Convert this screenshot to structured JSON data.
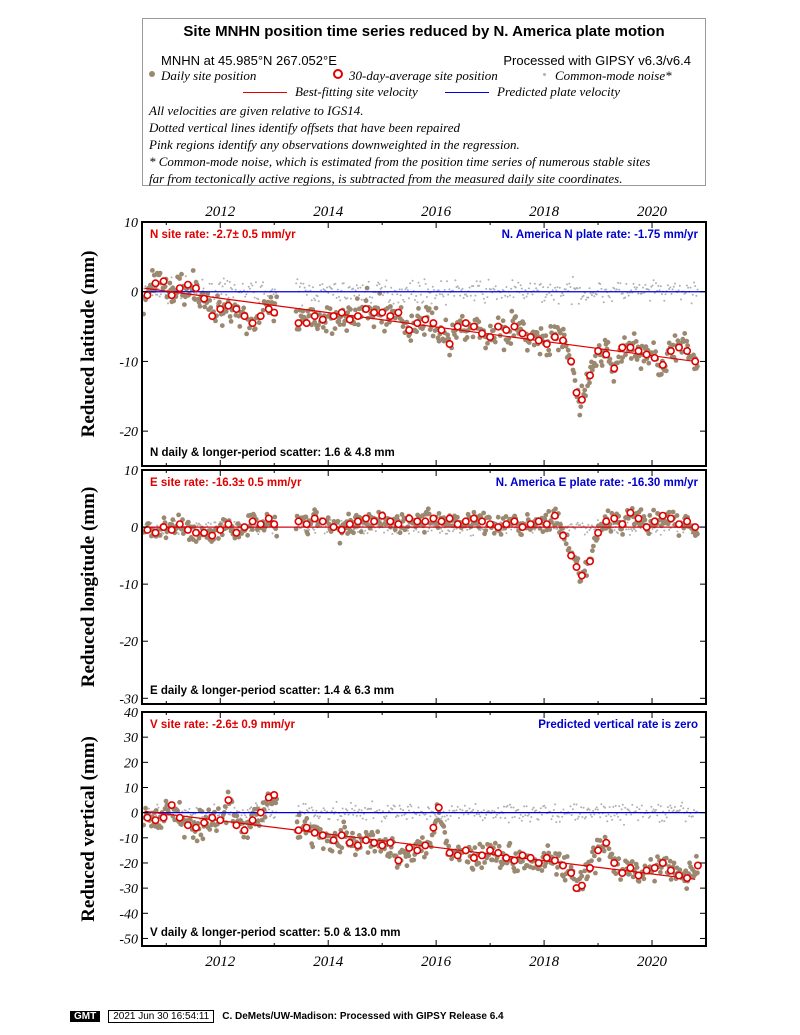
{
  "header": {
    "title": "Site MNHN position time series reduced by N. America plate motion",
    "site_location": "MNHN at 45.985°N 267.052°E",
    "processing": "Processed with GIPSY v6.3/v6.4",
    "legend": {
      "daily": "Daily site position",
      "avg30": "30-day-average site position",
      "common_mode": "Common-mode noise*",
      "best_fit": "Best-fitting site velocity",
      "predicted": "Predicted plate velocity"
    },
    "notes": [
      "All velocities are given relative to IGS14.",
      "Dotted vertical lines identify offsets that have been repaired",
      "Pink regions identify any observations downweighted in the regression.",
      "* Common-mode noise, which is estimated from the position time series of numerous stable sites",
      "far from tectonically active regions, is subtracted from the measured daily site coordinates."
    ]
  },
  "footer": {
    "logo": "GMT",
    "timestamp": "2021 Jun 30 16:54:11",
    "credit": "C. DeMets/UW-Madison: Processed with GIPSY Release 6.4"
  },
  "colors": {
    "daily": "#9b8870",
    "common_mode": "#b0b0b0",
    "avg_stroke": "#e00000",
    "best_fit": "#e00000",
    "predicted": "#0000dd",
    "rate_text": "#e00000",
    "plate_text": "#0000cc"
  },
  "chart_data": [
    {
      "type": "scatter",
      "component": "N",
      "ylabel": "Reduced latitude (mm)",
      "site_rate": "N site rate:  -2.7± 0.5 mm/yr",
      "plate_rate": "N. America N plate rate: -1.75 mm/yr",
      "scatter": "N daily & longer-period scatter:   1.6 &   4.8 mm",
      "xlim": [
        2010.55,
        2021.0
      ],
      "ylim": [
        -25,
        10
      ],
      "yticks": [
        10,
        0,
        -10,
        -20
      ],
      "xticks": [
        "2012",
        "2014",
        "2016",
        "2018",
        "2020"
      ],
      "best_fit": {
        "x": [
          2010.6,
          2020.8
        ],
        "y": [
          0.5,
          -10.0
        ]
      },
      "predicted": {
        "x": [
          2010.55,
          2021.0
        ],
        "y": [
          0,
          0
        ]
      },
      "avg": [
        [
          2010.65,
          -0.5
        ],
        [
          2010.8,
          1.2
        ],
        [
          2010.95,
          1.5
        ],
        [
          2011.1,
          -0.5
        ],
        [
          2011.25,
          0.5
        ],
        [
          2011.4,
          1.0
        ],
        [
          2011.55,
          0.5
        ],
        [
          2011.7,
          -1.0
        ],
        [
          2011.85,
          -3.5
        ],
        [
          2012.0,
          -2.5
        ],
        [
          2012.15,
          -2.0
        ],
        [
          2012.3,
          -2.5
        ],
        [
          2012.45,
          -3.5
        ],
        [
          2012.6,
          -4.5
        ],
        [
          2012.75,
          -3.5
        ],
        [
          2012.9,
          -2.5
        ],
        [
          2013.0,
          -3.0
        ],
        [
          2013.45,
          -4.5
        ],
        [
          2013.6,
          -4.5
        ],
        [
          2013.75,
          -3.5
        ],
        [
          2013.9,
          -4.0
        ],
        [
          2014.1,
          -3.5
        ],
        [
          2014.25,
          -3.0
        ],
        [
          2014.4,
          -4.0
        ],
        [
          2014.55,
          -3.5
        ],
        [
          2014.7,
          -2.5
        ],
        [
          2014.85,
          -3.0
        ],
        [
          2015.0,
          -3.0
        ],
        [
          2015.15,
          -3.5
        ],
        [
          2015.3,
          -3.0
        ],
        [
          2015.5,
          -5.5
        ],
        [
          2015.65,
          -4.5
        ],
        [
          2015.8,
          -4.0
        ],
        [
          2015.95,
          -4.5
        ],
        [
          2016.1,
          -5.5
        ],
        [
          2016.25,
          -7.5
        ],
        [
          2016.4,
          -5.0
        ],
        [
          2016.55,
          -4.5
        ],
        [
          2016.7,
          -5.0
        ],
        [
          2016.85,
          -6.0
        ],
        [
          2017.0,
          -6.5
        ],
        [
          2017.15,
          -5.0
        ],
        [
          2017.3,
          -5.5
        ],
        [
          2017.45,
          -5.0
        ],
        [
          2017.6,
          -6.0
        ],
        [
          2017.75,
          -6.5
        ],
        [
          2017.9,
          -7.0
        ],
        [
          2018.05,
          -7.5
        ],
        [
          2018.2,
          -6.5
        ],
        [
          2018.35,
          -7.0
        ],
        [
          2018.5,
          -10.0
        ],
        [
          2018.6,
          -14.5
        ],
        [
          2018.7,
          -15.5
        ],
        [
          2018.85,
          -12.0
        ],
        [
          2019.0,
          -8.5
        ],
        [
          2019.15,
          -9.0
        ],
        [
          2019.3,
          -11.0
        ],
        [
          2019.45,
          -8.0
        ],
        [
          2019.6,
          -8.0
        ],
        [
          2019.75,
          -8.5
        ],
        [
          2019.9,
          -9.0
        ],
        [
          2020.05,
          -9.5
        ],
        [
          2020.2,
          -10.5
        ],
        [
          2020.35,
          -8.5
        ],
        [
          2020.5,
          -8.0
        ],
        [
          2020.65,
          -8.5
        ],
        [
          2020.8,
          -10.0
        ]
      ]
    },
    {
      "type": "scatter",
      "component": "E",
      "ylabel": "Reduced longitude (mm)",
      "site_rate": "E site rate:  -16.3± 0.5 mm/yr",
      "plate_rate": "N. America E plate rate: -16.30 mm/yr",
      "scatter": "E daily & longer-period scatter:   1.4 &   6.3 mm",
      "xlim": [
        2010.55,
        2021.0
      ],
      "ylim": [
        -31,
        10
      ],
      "yticks": [
        10,
        0,
        -10,
        -20,
        -30
      ],
      "xticks": [
        "2012",
        "2014",
        "2016",
        "2018",
        "2020"
      ],
      "best_fit": {
        "x": [
          2010.6,
          2020.8
        ],
        "y": [
          0,
          0
        ]
      },
      "predicted": {
        "x": [
          2010.55,
          2021.0
        ],
        "y": [
          0,
          0
        ]
      },
      "avg": [
        [
          2010.65,
          -0.5
        ],
        [
          2010.8,
          -1.0
        ],
        [
          2010.95,
          0.0
        ],
        [
          2011.1,
          -0.5
        ],
        [
          2011.25,
          0.5
        ],
        [
          2011.4,
          -0.5
        ],
        [
          2011.55,
          -1.0
        ],
        [
          2011.7,
          -1.0
        ],
        [
          2011.85,
          -1.5
        ],
        [
          2012.0,
          -0.5
        ],
        [
          2012.15,
          0.5
        ],
        [
          2012.3,
          -1.0
        ],
        [
          2012.45,
          0.0
        ],
        [
          2012.6,
          1.0
        ],
        [
          2012.75,
          0.5
        ],
        [
          2012.9,
          1.5
        ],
        [
          2013.0,
          0.5
        ],
        [
          2013.45,
          1.0
        ],
        [
          2013.6,
          0.5
        ],
        [
          2013.75,
          1.5
        ],
        [
          2013.9,
          1.0
        ],
        [
          2014.1,
          0.0
        ],
        [
          2014.25,
          -0.5
        ],
        [
          2014.4,
          0.5
        ],
        [
          2014.55,
          1.0
        ],
        [
          2014.7,
          1.5
        ],
        [
          2014.85,
          1.0
        ],
        [
          2015.0,
          2.0
        ],
        [
          2015.15,
          1.0
        ],
        [
          2015.3,
          0.5
        ],
        [
          2015.5,
          1.5
        ],
        [
          2015.65,
          1.0
        ],
        [
          2015.8,
          1.0
        ],
        [
          2015.95,
          1.5
        ],
        [
          2016.1,
          1.0
        ],
        [
          2016.25,
          1.5
        ],
        [
          2016.4,
          0.5
        ],
        [
          2016.55,
          1.0
        ],
        [
          2016.7,
          1.5
        ],
        [
          2016.85,
          1.0
        ],
        [
          2017.0,
          0.5
        ],
        [
          2017.15,
          0.0
        ],
        [
          2017.3,
          0.5
        ],
        [
          2017.45,
          1.0
        ],
        [
          2017.6,
          0.0
        ],
        [
          2017.75,
          0.5
        ],
        [
          2017.9,
          1.0
        ],
        [
          2018.05,
          0.5
        ],
        [
          2018.2,
          2.0
        ],
        [
          2018.35,
          -1.5
        ],
        [
          2018.5,
          -5.0
        ],
        [
          2018.6,
          -7.0
        ],
        [
          2018.7,
          -8.5
        ],
        [
          2018.85,
          -6.0
        ],
        [
          2019.0,
          -1.0
        ],
        [
          2019.15,
          1.0
        ],
        [
          2019.3,
          1.5
        ],
        [
          2019.45,
          0.5
        ],
        [
          2019.6,
          2.5
        ],
        [
          2019.75,
          1.5
        ],
        [
          2019.9,
          0.0
        ],
        [
          2020.05,
          1.0
        ],
        [
          2020.2,
          2.0
        ],
        [
          2020.35,
          1.5
        ],
        [
          2020.5,
          0.5
        ],
        [
          2020.65,
          1.0
        ],
        [
          2020.8,
          0.0
        ]
      ]
    },
    {
      "type": "scatter",
      "component": "V",
      "ylabel": "Reduced vertical (mm)",
      "site_rate": "V site rate:  -2.6± 0.9 mm/yr",
      "plate_rate": "Predicted vertical rate is zero",
      "scatter": "V daily & longer-period scatter:   5.0 &  13.0 mm",
      "xlim": [
        2010.55,
        2021.0
      ],
      "ylim": [
        -53,
        40
      ],
      "yticks": [
        40,
        30,
        20,
        10,
        0,
        -10,
        -20,
        -30,
        -40,
        -50
      ],
      "xticks": [
        "2012",
        "2014",
        "2016",
        "2018",
        "2020"
      ],
      "best_fit": {
        "x": [
          2010.6,
          2020.8
        ],
        "y": [
          0.5,
          -26.5
        ]
      },
      "predicted": {
        "x": [
          2010.55,
          2021.0
        ],
        "y": [
          0,
          0
        ]
      },
      "avg": [
        [
          2010.65,
          -2.0
        ],
        [
          2010.8,
          -3.0
        ],
        [
          2010.95,
          -2.0
        ],
        [
          2011.1,
          3.0
        ],
        [
          2011.25,
          -2.0
        ],
        [
          2011.4,
          -5.0
        ],
        [
          2011.55,
          -6.0
        ],
        [
          2011.7,
          -4.0
        ],
        [
          2011.85,
          -2.0
        ],
        [
          2012.0,
          -3.0
        ],
        [
          2012.15,
          5.0
        ],
        [
          2012.3,
          -5.0
        ],
        [
          2012.45,
          -7.0
        ],
        [
          2012.6,
          -3.0
        ],
        [
          2012.75,
          0.0
        ],
        [
          2012.9,
          6.0
        ],
        [
          2013.0,
          7.0
        ],
        [
          2013.45,
          -7.0
        ],
        [
          2013.6,
          -6.0
        ],
        [
          2013.75,
          -8.0
        ],
        [
          2013.9,
          -9.0
        ],
        [
          2014.1,
          -11.0
        ],
        [
          2014.25,
          -9.0
        ],
        [
          2014.4,
          -12.0
        ],
        [
          2014.55,
          -13.0
        ],
        [
          2014.7,
          -11.0
        ],
        [
          2014.85,
          -12.0
        ],
        [
          2015.0,
          -13.0
        ],
        [
          2015.15,
          -12.0
        ],
        [
          2015.3,
          -19.0
        ],
        [
          2015.5,
          -14.0
        ],
        [
          2015.65,
          -15.0
        ],
        [
          2015.8,
          -13.0
        ],
        [
          2015.95,
          -6.0
        ],
        [
          2016.05,
          2.0
        ],
        [
          2016.25,
          -16.0
        ],
        [
          2016.4,
          -17.0
        ],
        [
          2016.55,
          -15.0
        ],
        [
          2016.7,
          -18.0
        ],
        [
          2016.85,
          -17.0
        ],
        [
          2017.0,
          -15.0
        ],
        [
          2017.15,
          -16.0
        ],
        [
          2017.3,
          -18.0
        ],
        [
          2017.45,
          -19.0
        ],
        [
          2017.6,
          -17.0
        ],
        [
          2017.75,
          -18.0
        ],
        [
          2017.9,
          -20.0
        ],
        [
          2018.05,
          -18.0
        ],
        [
          2018.2,
          -19.0
        ],
        [
          2018.35,
          -21.0
        ],
        [
          2018.5,
          -24.0
        ],
        [
          2018.6,
          -30.0
        ],
        [
          2018.7,
          -29.0
        ],
        [
          2018.85,
          -22.0
        ],
        [
          2019.0,
          -15.0
        ],
        [
          2019.15,
          -12.0
        ],
        [
          2019.3,
          -20.0
        ],
        [
          2019.45,
          -24.0
        ],
        [
          2019.6,
          -22.0
        ],
        [
          2019.75,
          -25.0
        ],
        [
          2019.9,
          -23.0
        ],
        [
          2020.05,
          -22.0
        ],
        [
          2020.2,
          -20.0
        ],
        [
          2020.35,
          -23.0
        ],
        [
          2020.5,
          -25.0
        ],
        [
          2020.65,
          -26.0
        ],
        [
          2020.85,
          -21.0
        ]
      ]
    }
  ]
}
